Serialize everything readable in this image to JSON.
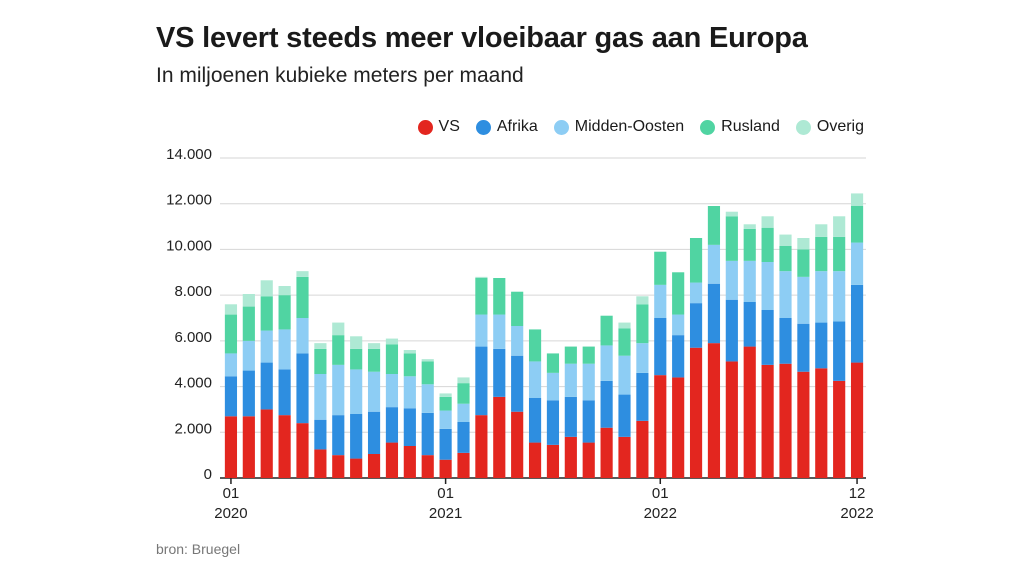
{
  "title": "VS levert steeds meer vloeibaar gas aan Europa",
  "subtitle": "In miljoenen kubieke meters per maand",
  "source": "bron: Bruegel",
  "chart_data": {
    "type": "bar",
    "stacked": true,
    "legend_position": "top-right",
    "grid": true,
    "ylim": [
      0,
      14000
    ],
    "y_ticks": [
      "0",
      "2.000",
      "4.000",
      "6.000",
      "8.000",
      "10.000",
      "12.000",
      "14.000"
    ],
    "y_tick_values": [
      0,
      2000,
      4000,
      6000,
      8000,
      10000,
      12000,
      14000
    ],
    "x_ticks": [
      {
        "index": 0,
        "month": "01",
        "year": "2020"
      },
      {
        "index": 12,
        "month": "01",
        "year": "2021"
      },
      {
        "index": 24,
        "month": "01",
        "year": "2022"
      },
      {
        "index": 35,
        "month": "12",
        "year": "2022"
      }
    ],
    "categories": [
      "2020-01",
      "2020-02",
      "2020-03",
      "2020-04",
      "2020-05",
      "2020-06",
      "2020-07",
      "2020-08",
      "2020-09",
      "2020-10",
      "2020-11",
      "2020-12",
      "2021-01",
      "2021-02",
      "2021-03",
      "2021-04",
      "2021-05",
      "2021-06",
      "2021-07",
      "2021-08",
      "2021-09",
      "2021-10",
      "2021-11",
      "2021-12",
      "2022-01",
      "2022-02",
      "2022-03",
      "2022-04",
      "2022-05",
      "2022-06",
      "2022-07",
      "2022-08",
      "2022-09",
      "2022-10",
      "2022-11",
      "2022-12"
    ],
    "series": [
      {
        "name": "VS",
        "color": "#e3261f",
        "values": [
          2700,
          2700,
          3000,
          2750,
          2400,
          1250,
          1000,
          850,
          1050,
          1550,
          1400,
          1000,
          800,
          1100,
          2750,
          3550,
          2900,
          1550,
          1450,
          1800,
          1550,
          2200,
          1800,
          2500,
          4500,
          4400,
          5700,
          5900,
          5100,
          5750,
          4950,
          5000,
          4650,
          4800,
          4250,
          5050
        ]
      },
      {
        "name": "Afrika",
        "color": "#2e8ee0",
        "values": [
          1750,
          2000,
          2050,
          2000,
          3050,
          1300,
          1750,
          1950,
          1850,
          1550,
          1650,
          1850,
          1350,
          1350,
          3000,
          2100,
          2450,
          1950,
          1950,
          1750,
          1850,
          2050,
          1850,
          2100,
          2500,
          1850,
          1950,
          2600,
          2700,
          1950,
          2400,
          2000,
          2100,
          2000,
          2600,
          3400
        ]
      },
      {
        "name": "Midden-Oosten",
        "color": "#8dcdf4",
        "values": [
          1000,
          1300,
          1400,
          1750,
          1550,
          2000,
          2200,
          1950,
          1750,
          1450,
          1400,
          1250,
          800,
          800,
          1400,
          1500,
          1300,
          1600,
          1200,
          1450,
          1600,
          1550,
          1700,
          1300,
          1450,
          900,
          900,
          1700,
          1700,
          1800,
          2100,
          2050,
          2050,
          2250,
          2200,
          1850
        ]
      },
      {
        "name": "Rusland",
        "color": "#50d4a2",
        "values": [
          1700,
          1500,
          1500,
          1500,
          1800,
          1100,
          1300,
          900,
          1000,
          1300,
          1000,
          1000,
          600,
          900,
          1600,
          1600,
          1500,
          1400,
          850,
          750,
          750,
          1300,
          1200,
          1700,
          1450,
          1850,
          1950,
          1700,
          1950,
          1400,
          1500,
          1100,
          1200,
          1500,
          1500,
          1600
        ]
      },
      {
        "name": "Overig",
        "color": "#aee9d4",
        "values": [
          450,
          550,
          700,
          400,
          250,
          250,
          550,
          550,
          250,
          250,
          150,
          100,
          150,
          250,
          50,
          0,
          0,
          0,
          0,
          0,
          0,
          0,
          250,
          350,
          0,
          0,
          0,
          0,
          200,
          200,
          500,
          500,
          500,
          550,
          900,
          550
        ]
      }
    ]
  }
}
